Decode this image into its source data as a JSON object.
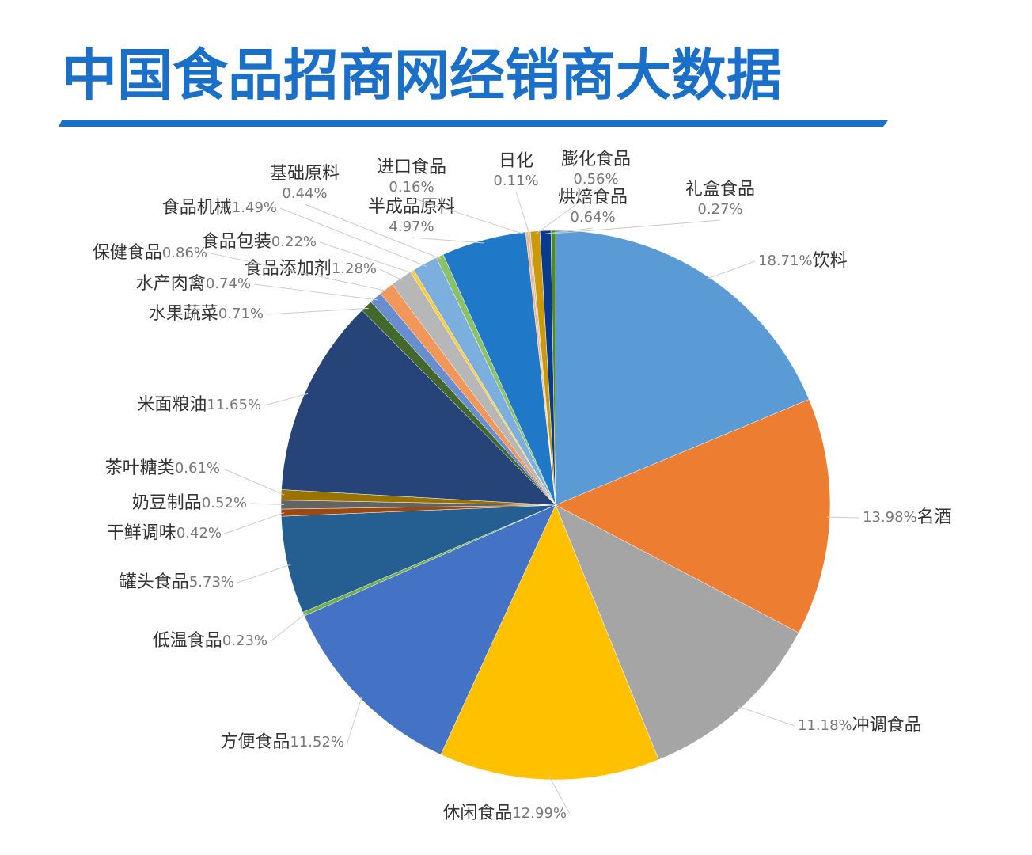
{
  "chart_data": {
    "type": "pie",
    "title": "中国食品招商网经销商大数据",
    "categories": [
      "饮料",
      "名酒",
      "冲调食品",
      "休闲食品",
      "方便食品",
      "低温食品",
      "罐头食品",
      "干鲜调味",
      "奶豆制品",
      "茶叶糖类",
      "米面粮油",
      "水果蔬菜",
      "水产肉禽",
      "保健食品",
      "食品添加剂",
      "食品包装",
      "食品机械",
      "基础原料",
      "半成品原料",
      "进口食品",
      "日化",
      "膨化食品",
      "烘焙食品",
      "礼盒食品"
    ],
    "values": [
      18.71,
      13.98,
      11.18,
      12.99,
      11.52,
      0.23,
      5.73,
      0.42,
      0.52,
      0.61,
      11.65,
      0.71,
      0.74,
      0.86,
      1.28,
      0.22,
      1.49,
      0.44,
      4.97,
      0.16,
      0.11,
      0.56,
      0.64,
      0.27
    ],
    "value_labels": [
      "18.71%",
      "13.98%",
      "11.18%",
      "12.99%",
      "11.52%",
      "0.23%",
      "5.73%",
      "0.42%",
      "0.52%",
      "0.61%",
      "11.65%",
      "0.71%",
      "0.74%",
      "0.86%",
      "1.28%",
      "0.22%",
      "1.49%",
      "0.44%",
      "4.97%",
      "0.16%",
      "0.11%",
      "0.56%",
      "0.64%",
      "0.27%"
    ],
    "colors": [
      "#5b9bd5",
      "#ed7d31",
      "#a5a5a5",
      "#ffc000",
      "#4472c4",
      "#70ad47",
      "#255e91",
      "#9e480e",
      "#636363",
      "#997300",
      "#264478",
      "#43682b",
      "#698ed0",
      "#f1975a",
      "#b7b7b7",
      "#ffcd33",
      "#7cafdd",
      "#8cc168",
      "#1f78c8",
      "#f4b183",
      "#c0c0c0",
      "#cc9a06",
      "#0a3a8c",
      "#4d8a2f"
    ]
  }
}
